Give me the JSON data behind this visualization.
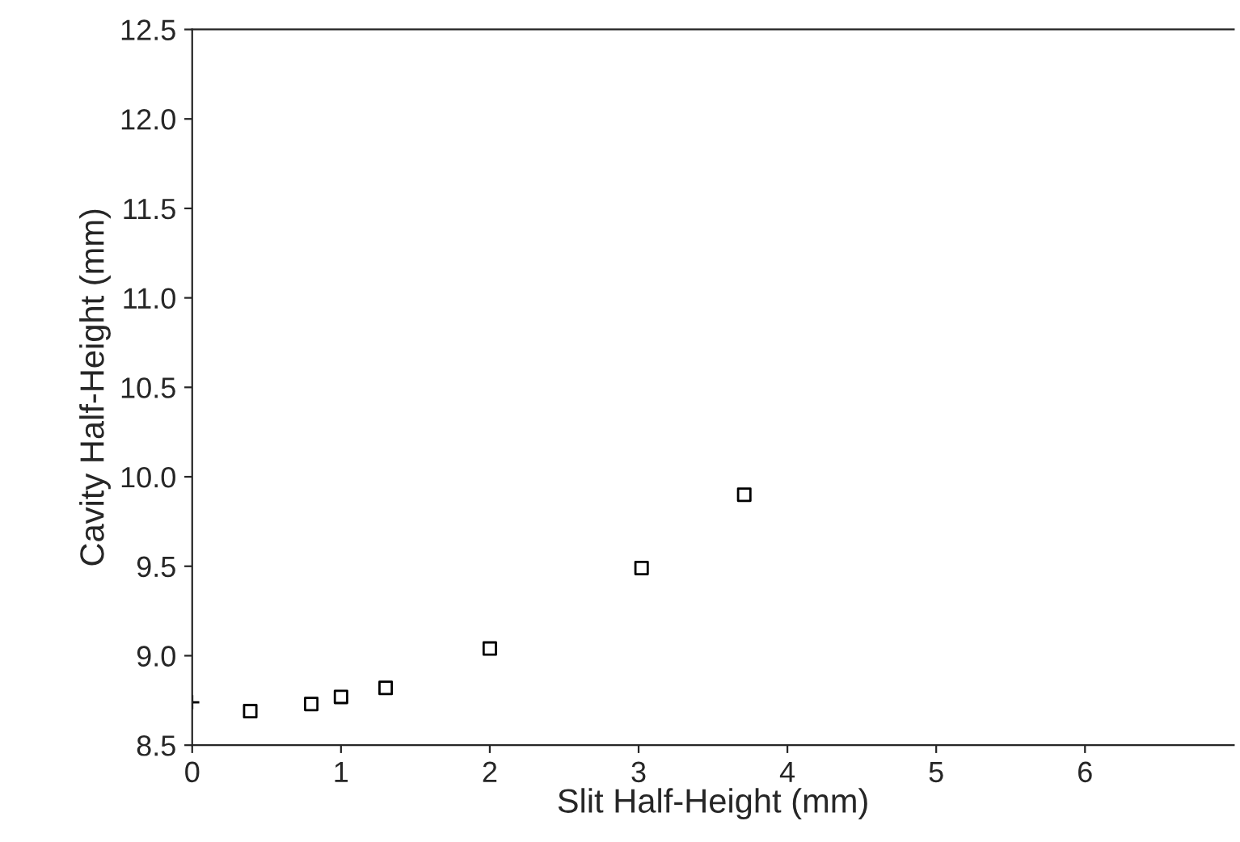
{
  "chart_data": {
    "type": "scatter",
    "xlabel": "Slit Half-Height (mm)",
    "ylabel": "Cavity Half-Height (mm)",
    "series": [
      {
        "color": "#000000",
        "marker": "square",
        "x": [
          0.39,
          0.8,
          1.0,
          1.3,
          2.0,
          3.02,
          3.71
        ],
        "values": [
          8.69,
          8.73,
          8.77,
          8.82,
          9.04,
          9.49,
          9.9
        ]
      },
      {
        "color": "#000000",
        "marker": "cross",
        "x": [
          0
        ],
        "values": [
          8.74
        ]
      }
    ],
    "xlim": [
      0,
      7
    ],
    "xticks": [
      0,
      1,
      2,
      3,
      4,
      5,
      6
    ],
    "ylim": [
      8.5,
      12.5
    ],
    "yticks": [
      {
        "value": 8.5,
        "label": "8.5"
      },
      {
        "value": 9.0,
        "label": "9.0"
      },
      {
        "value": 9.5,
        "label": "9.5"
      },
      {
        "value": 10.0,
        "label": "10.0"
      },
      {
        "value": 10.5,
        "label": "10.5"
      },
      {
        "value": 11.0,
        "label": "11.0"
      },
      {
        "value": 11.5,
        "label": "11.5"
      },
      {
        "value": 12.0,
        "label": "12.0"
      },
      {
        "value": 12.5,
        "label": "12.5"
      }
    ],
    "grid": false
  }
}
